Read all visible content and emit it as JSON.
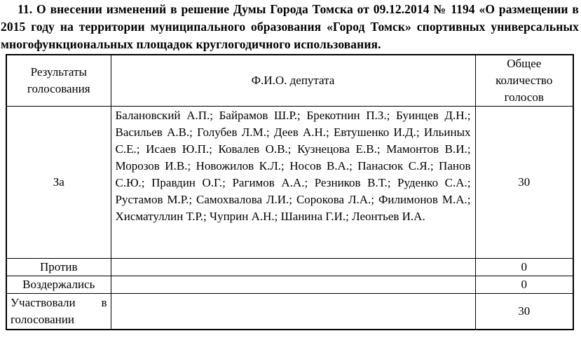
{
  "title": "11. О внесении изменений в решение Думы Города Томска от 09.12.2014 № 1194 «О размещении в 2015 году на территории муниципального образования «Город Томск» спортивных универсальных многофункциональных площадок круглогодичного использования.",
  "colors": {
    "text": "#000000",
    "background": "#ffffff",
    "border": "#000000"
  },
  "table": {
    "headers": {
      "results": "Результаты голосования",
      "deputy": "Ф.И.О. депутата",
      "total": "Общее количество голосов"
    },
    "rows": [
      {
        "result": "За",
        "deputies": "Балановский А.П.; Байрамов Ш.Р.; Брекотнин П.З.; Буинцев Д.Н.; Васильев А.В.; Голубев Л.М.; Деев А.Н.; Евтушенко И.Д.; Ильиных С.Е.; Исаев Ю.П.; Ковалев О.В.; Кузнецова Е.В.; Мамонтов В.И.; Морозов И.В.; Новожилов К.Л.; Носов В.А.; Панасюк С.Я.; Панов С.Ю.; Правдин О.Г.; Рагимов А.А.; Резников В.Т.; Руденко С.А.; Рустамов М.Р.; Самохвалова Л.И.; Сорокова Л.А.; Филимонов М.А.; Хисматуллин Т.Р.; Чуприн А.Н.; Шанина Г.И.; Леонтьев И.А.",
        "votes": "30"
      },
      {
        "result": "Против",
        "deputies": "",
        "votes": "0"
      },
      {
        "result": "Воздержались",
        "deputies": "",
        "votes": "0"
      },
      {
        "result": "Участвовали в голосовании",
        "deputies": "",
        "votes": "30"
      }
    ]
  }
}
